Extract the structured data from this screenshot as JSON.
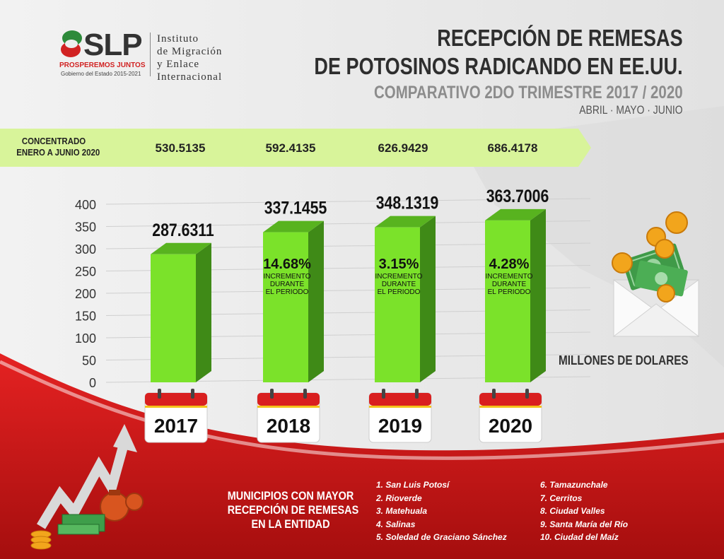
{
  "header": {
    "logo_text": "SLP",
    "logo_tagline": "PROSPEREMOS JUNTOS",
    "logo_government": "Gobierno del Estado 2015-2021",
    "institute_lines": [
      "Instituto",
      "de Migración",
      "y Enlace",
      "Internacional"
    ]
  },
  "title": {
    "line1": "RECEPCIÓN DE REMESAS",
    "line2": "DE POTOSINOS RADICANDO EN EE.UU.",
    "subtitle": "COMPARATIVO 2DO TRIMESTRE 2017 / 2020",
    "months": "ABRIL · MAYO · JUNIO"
  },
  "banner": {
    "label_line1": "CONCENTRADO",
    "label_line2": "ENERO A JUNIO 2020",
    "values": [
      "530.5135",
      "592.4135",
      "626.9429",
      "686.4178"
    ]
  },
  "chart_data": {
    "type": "bar",
    "categories": [
      "2017",
      "2018",
      "2019",
      "2020"
    ],
    "values": [
      287.6311,
      337.1455,
      348.1319,
      363.7006
    ],
    "value_labels": [
      "287.6311",
      "337.1455",
      "348.1319",
      "363.7006"
    ],
    "increase_labels": [
      "",
      "14.68%",
      "3.15%",
      "4.28%"
    ],
    "increase_note": [
      "INCREMENTO",
      "DURANTE",
      "EL PERIODO"
    ],
    "yticks": [
      0,
      50,
      100,
      150,
      200,
      250,
      300,
      350,
      400
    ],
    "ylim": [
      0,
      400
    ],
    "ylabel": "MILLONES DE DOLARES",
    "title": "",
    "xlabel": ""
  },
  "municipalities": {
    "title_lines": [
      "MUNICIPIOS CON MAYOR",
      "RECEPCIÓN DE REMESAS",
      "EN LA ENTIDAD"
    ],
    "col1": [
      "1. San Luis Potosí",
      "2. Rioverde",
      "3. Matehuala",
      "4. Salinas",
      "5. Soledad de Graciano Sánchez"
    ],
    "col2": [
      "6. Tamazunchale",
      "7. Cerritos",
      "8. Ciudad Valles",
      "9. Santa María del Río",
      "10. Ciudad del Maíz"
    ]
  },
  "colors": {
    "bar_front": "#7be22a",
    "bar_side": "#3f8a17",
    "bar_top": "#58b31f",
    "banner": "#d8f49a",
    "red": "#cc1818",
    "icons": [
      "money-envelope-icon",
      "coin-icon",
      "money-bag-icon",
      "growth-arrow-icon",
      "calendar-icon"
    ]
  }
}
